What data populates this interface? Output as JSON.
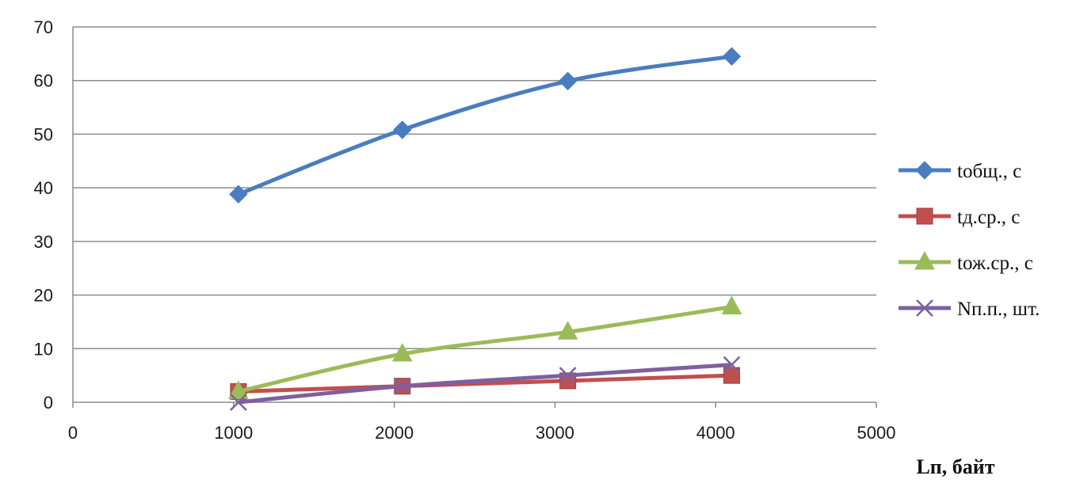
{
  "chart_data": {
    "type": "line",
    "x": [
      1030,
      2050,
      3080,
      4100
    ],
    "xlabel": "Lп, байт",
    "ylabel": "",
    "xlim": [
      0,
      5000
    ],
    "ylim": [
      0,
      70
    ],
    "xticks": [
      "0",
      "1000",
      "2000",
      "3000",
      "4000",
      "5000"
    ],
    "yticks": [
      "0",
      "10",
      "20",
      "30",
      "40",
      "50",
      "60",
      "70"
    ],
    "grid": "horizontal",
    "legend_position": "right",
    "series": [
      {
        "name": "tобщ., с",
        "values": [
          38.8,
          50.8,
          59.9,
          64.5
        ],
        "color": "#4a7cc0",
        "marker": "diamond"
      },
      {
        "name": "tд.ср., с",
        "values": [
          2.0,
          3.0,
          4.0,
          5.0
        ],
        "color": "#c0504d",
        "marker": "square"
      },
      {
        "name": "tож.ср., с",
        "values": [
          2.0,
          9.0,
          13.1,
          17.8
        ],
        "color": "#9bbb59",
        "marker": "triangle"
      },
      {
        "name": "Nп.п., шт.",
        "values": [
          0.0,
          3.0,
          5.0,
          7.0
        ],
        "color": "#7f5fa0",
        "marker": "x"
      }
    ]
  }
}
